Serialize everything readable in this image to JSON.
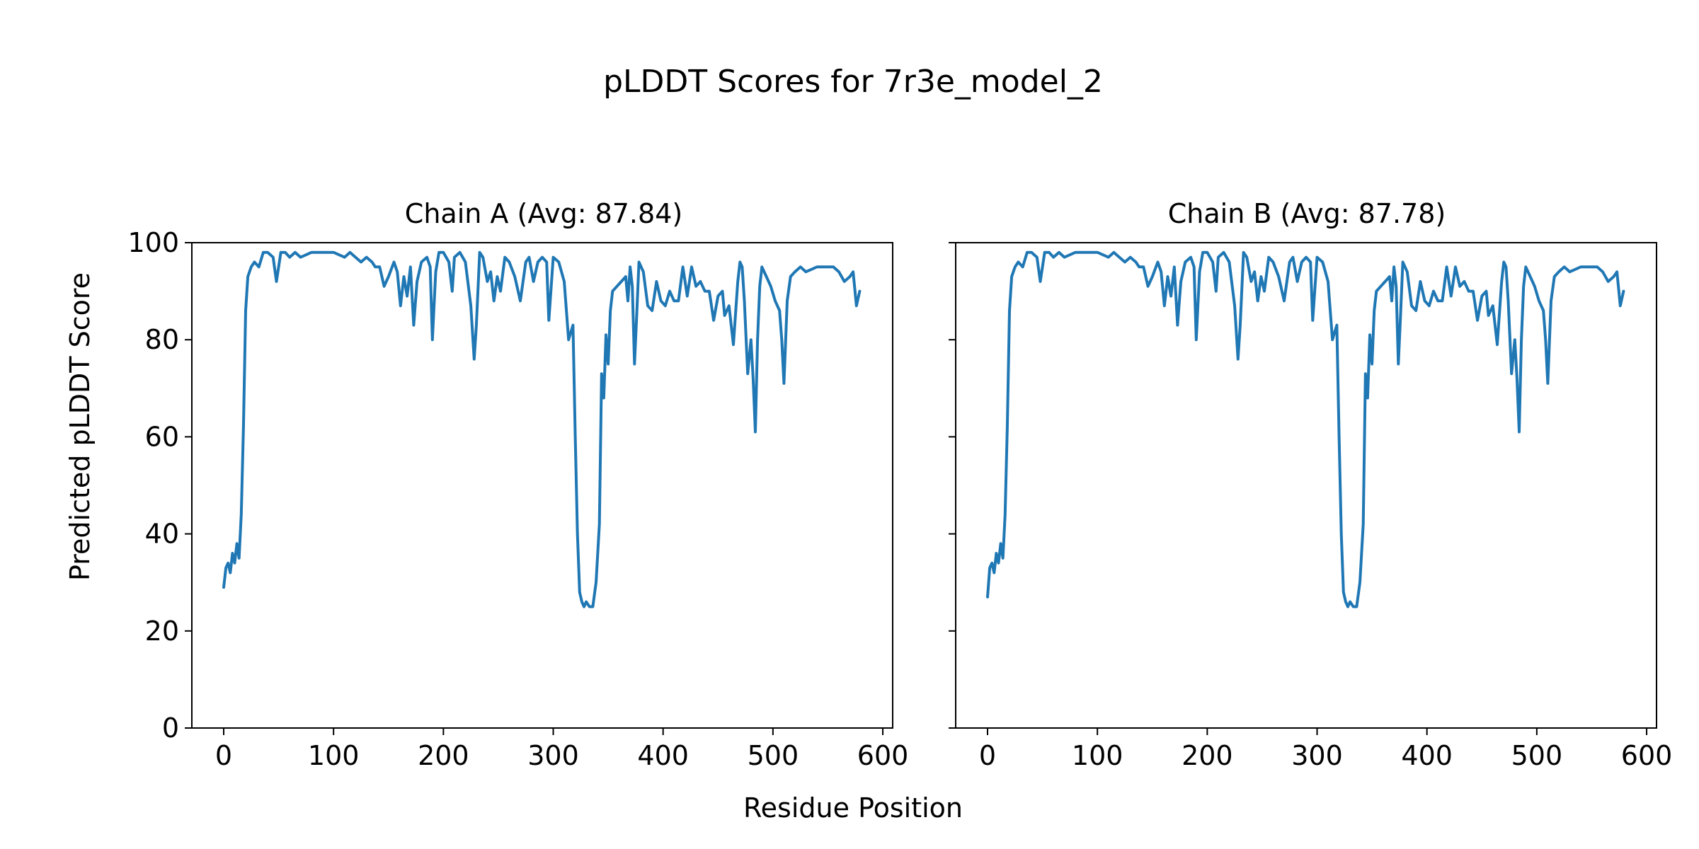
{
  "figure": {
    "title": "pLDDT Scores for 7r3e_model_2",
    "xlabel": "Residue Position",
    "ylabel": "Predicted pLDDT Score"
  },
  "colors": {
    "series": "#1f77b4",
    "axis": "#000000",
    "background": "#ffffff"
  },
  "chart_data": [
    {
      "type": "line",
      "title": "Chain A (Avg: 87.84)",
      "xlabel": "Residue Position",
      "ylabel": "Predicted pLDDT Score",
      "xlim": [
        -29,
        609
      ],
      "ylim": [
        0,
        100
      ],
      "xticks": [
        0,
        100,
        200,
        300,
        400,
        500,
        600
      ],
      "yticks": [
        0,
        20,
        40,
        60,
        80,
        100
      ],
      "grid": false,
      "series": [
        {
          "name": "Chain A",
          "x": [
            0,
            2,
            4,
            6,
            8,
            10,
            12,
            14,
            16,
            18,
            20,
            22,
            25,
            28,
            32,
            36,
            40,
            45,
            48,
            52,
            56,
            60,
            65,
            70,
            80,
            90,
            100,
            110,
            115,
            120,
            125,
            130,
            135,
            138,
            142,
            146,
            150,
            155,
            158,
            161,
            164,
            167,
            170,
            173,
            176,
            180,
            185,
            188,
            190,
            193,
            196,
            200,
            205,
            208,
            210,
            215,
            220,
            225,
            228,
            230,
            233,
            236,
            240,
            243,
            246,
            249,
            252,
            256,
            260,
            265,
            270,
            275,
            278,
            282,
            286,
            290,
            294,
            296,
            300,
            305,
            310,
            314,
            318,
            320,
            322,
            324,
            326,
            328,
            330,
            333,
            336,
            339,
            342,
            344,
            346,
            348,
            350,
            352,
            354,
            358,
            362,
            366,
            368,
            370,
            372,
            374,
            376,
            378,
            382,
            386,
            390,
            394,
            398,
            402,
            406,
            410,
            414,
            418,
            422,
            426,
            430,
            434,
            438,
            442,
            446,
            450,
            454,
            456,
            460,
            464,
            468,
            470,
            472,
            474,
            477,
            480,
            482,
            484,
            486,
            488,
            490,
            494,
            498,
            502,
            506,
            508,
            510,
            513,
            516,
            520,
            525,
            530,
            540,
            550,
            555,
            560,
            565,
            570,
            573,
            576,
            579
          ],
          "values": [
            29,
            33,
            34,
            32,
            36,
            34,
            38,
            35,
            44,
            62,
            86,
            93,
            95,
            96,
            95,
            98,
            98,
            97,
            92,
            98,
            98,
            97,
            98,
            97,
            98,
            98,
            98,
            97,
            98,
            97,
            96,
            97,
            96,
            95,
            95,
            91,
            93,
            96,
            94,
            87,
            93,
            89,
            95,
            83,
            92,
            96,
            97,
            95,
            80,
            94,
            98,
            98,
            96,
            90,
            97,
            98,
            96,
            87,
            76,
            83,
            98,
            97,
            92,
            94,
            88,
            93,
            90,
            97,
            96,
            93,
            88,
            96,
            97,
            92,
            96,
            97,
            96,
            84,
            97,
            96,
            92,
            80,
            83,
            60,
            40,
            28,
            26,
            25,
            26,
            25,
            25,
            30,
            42,
            73,
            68,
            81,
            75,
            86,
            90,
            91,
            92,
            93,
            88,
            95,
            91,
            75,
            85,
            96,
            94,
            87,
            86,
            92,
            88,
            87,
            90,
            88,
            88,
            95,
            89,
            95,
            91,
            92,
            90,
            90,
            84,
            89,
            90,
            85,
            87,
            79,
            92,
            96,
            95,
            88,
            73,
            80,
            72,
            61,
            80,
            91,
            95,
            93,
            91,
            88,
            86,
            80,
            71,
            88,
            93,
            94,
            95,
            94,
            95,
            95,
            95,
            94,
            92,
            93,
            94,
            87,
            90
          ]
        }
      ]
    },
    {
      "type": "line",
      "title": "Chain B (Avg: 87.78)",
      "xlabel": "Residue Position",
      "ylabel": "",
      "xlim": [
        -29,
        609
      ],
      "ylim": [
        0,
        100
      ],
      "xticks": [
        0,
        100,
        200,
        300,
        400,
        500,
        600
      ],
      "yticks": [
        0,
        20,
        40,
        60,
        80,
        100
      ],
      "grid": false,
      "series": [
        {
          "name": "Chain B",
          "x": [
            0,
            2,
            4,
            6,
            8,
            10,
            12,
            14,
            16,
            18,
            20,
            22,
            25,
            28,
            32,
            36,
            40,
            45,
            48,
            52,
            56,
            60,
            65,
            70,
            80,
            90,
            100,
            110,
            115,
            120,
            125,
            130,
            135,
            138,
            142,
            146,
            150,
            155,
            158,
            161,
            164,
            167,
            170,
            173,
            176,
            180,
            185,
            188,
            190,
            193,
            196,
            200,
            205,
            208,
            210,
            215,
            220,
            225,
            228,
            230,
            233,
            236,
            240,
            243,
            246,
            249,
            252,
            256,
            260,
            265,
            270,
            275,
            278,
            282,
            286,
            290,
            294,
            296,
            300,
            305,
            310,
            314,
            318,
            320,
            322,
            324,
            326,
            328,
            330,
            333,
            336,
            339,
            342,
            344,
            346,
            348,
            350,
            352,
            354,
            358,
            362,
            366,
            368,
            370,
            372,
            374,
            376,
            378,
            382,
            386,
            390,
            394,
            398,
            402,
            406,
            410,
            414,
            418,
            422,
            426,
            430,
            434,
            438,
            442,
            446,
            450,
            454,
            456,
            460,
            464,
            468,
            470,
            472,
            474,
            477,
            480,
            482,
            484,
            486,
            488,
            490,
            494,
            498,
            502,
            506,
            508,
            510,
            513,
            516,
            520,
            525,
            530,
            540,
            550,
            555,
            560,
            565,
            570,
            573,
            576,
            579
          ],
          "values": [
            27,
            33,
            34,
            32,
            36,
            34,
            38,
            35,
            44,
            62,
            86,
            93,
            95,
            96,
            95,
            98,
            98,
            97,
            92,
            98,
            98,
            97,
            98,
            97,
            98,
            98,
            98,
            97,
            98,
            97,
            96,
            97,
            96,
            95,
            95,
            91,
            93,
            96,
            94,
            87,
            93,
            89,
            95,
            83,
            92,
            96,
            97,
            95,
            80,
            94,
            98,
            98,
            96,
            90,
            97,
            98,
            96,
            87,
            76,
            83,
            98,
            97,
            92,
            94,
            88,
            93,
            90,
            97,
            96,
            93,
            88,
            96,
            97,
            92,
            96,
            97,
            96,
            84,
            97,
            96,
            92,
            80,
            83,
            60,
            40,
            28,
            26,
            25,
            26,
            25,
            25,
            30,
            42,
            73,
            68,
            81,
            75,
            86,
            90,
            91,
            92,
            93,
            88,
            95,
            91,
            75,
            85,
            96,
            94,
            87,
            86,
            92,
            88,
            87,
            90,
            88,
            88,
            95,
            89,
            95,
            91,
            92,
            90,
            90,
            84,
            89,
            90,
            85,
            87,
            79,
            92,
            96,
            95,
            88,
            73,
            80,
            72,
            61,
            80,
            91,
            95,
            93,
            91,
            88,
            86,
            80,
            71,
            88,
            93,
            94,
            95,
            94,
            95,
            95,
            95,
            94,
            92,
            93,
            94,
            87,
            90
          ]
        }
      ]
    }
  ]
}
